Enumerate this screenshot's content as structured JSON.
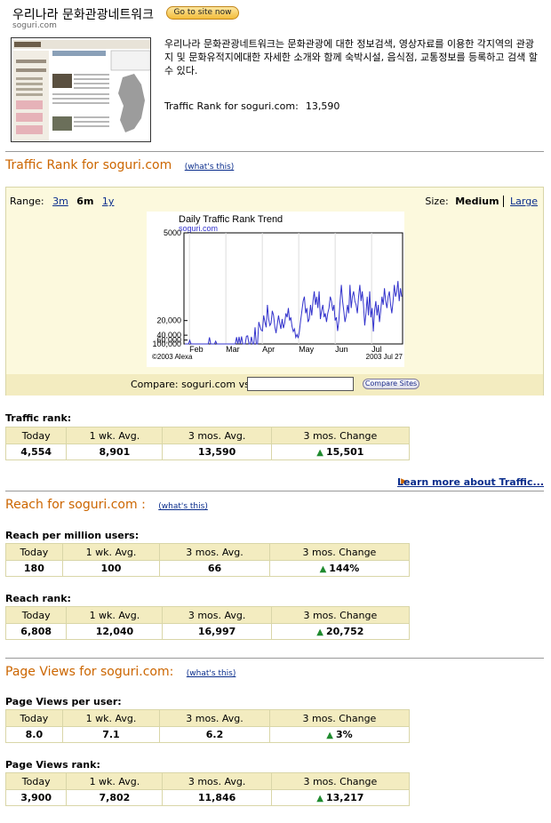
{
  "header": {
    "site_title": "우리나라 문화관광네트워크",
    "go_button": "Go to site now",
    "domain": "soguri.com",
    "description": "우리나라 문화관광네트워크는 문화관광에 대한 정보검색, 영상자료를 이용한 각지역의 관광지 및 문화유적지에대한 자세한 소개와 함께 숙박시설, 음식점, 교통정보를 등록하고 검색 할 수 있다.",
    "traffic_rank_label": "Traffic Rank for soguri.com:",
    "traffic_rank_value": "13,590"
  },
  "traffic_section": {
    "title": "Traffic Rank for soguri.com",
    "whats_this": "(what's this)",
    "range_label": "Range:",
    "range_options": [
      "3m",
      "6m",
      "1y"
    ],
    "range_selected": "6m",
    "size_label": "Size:",
    "size_selected": "Medium",
    "size_other": "Large",
    "compare_label": "Compare:  soguri.com vs.",
    "compare_input_value": "",
    "compare_button": "Compare Sites",
    "learn_more": "Learn more about Traffic..."
  },
  "chart_data": {
    "type": "line",
    "title": "Daily Traffic Rank Trend",
    "subtitle": "soguri.com",
    "footer_left": "©2003 Alexa",
    "footer_right": "2003 Jul 27",
    "y_tick_labels": [
      "5000",
      "20,000",
      "40,000",
      "60,000",
      "100,000"
    ],
    "x_tick_labels": [
      "Feb",
      "Mar",
      "Apr",
      "May",
      "Jun",
      "Jul"
    ],
    "line_color": "#3333cc",
    "ylim_rank": [
      100000,
      5000
    ],
    "y_scale": "reciprocal",
    "series": [
      {
        "values": [
          100000,
          100000,
          100000,
          100000,
          62000,
          100000,
          100000,
          100000,
          100000,
          100000,
          100000,
          100000,
          100000,
          100000,
          100000,
          100000,
          100000,
          100000,
          100000,
          100000,
          47000,
          100000,
          100000,
          100000,
          100000,
          68000,
          100000,
          100000,
          100000,
          100000,
          100000,
          100000,
          100000,
          100000,
          100000,
          100000,
          100000,
          100000,
          100000,
          100000,
          100000,
          100000,
          46000,
          100000,
          45000,
          100000,
          44000,
          100000,
          100000,
          100000,
          43000,
          42000,
          100000,
          100000,
          45000,
          100000,
          100000,
          26000,
          100000,
          100000,
          21000,
          25000,
          30000,
          31000,
          17000,
          21000,
          26000,
          13000,
          19000,
          24000,
          22000,
          15000,
          17000,
          25000,
          35000,
          23000,
          17000,
          22000,
          28000,
          19000,
          27000,
          22000,
          16000,
          18000,
          14000,
          20000,
          18000,
          25000,
          32000,
          28000,
          47000,
          38000,
          50000,
          32000,
          20000,
          15000,
          12000,
          11000,
          16000,
          14000,
          21000,
          19000,
          13000,
          17000,
          12000,
          10000,
          13000,
          11000,
          14000,
          10000,
          19000,
          15000,
          13000,
          18000,
          16000,
          21000,
          16000,
          14000,
          11000,
          12000,
          15000,
          13000,
          20000,
          18000,
          31000,
          20000,
          12000,
          9000,
          12000,
          15000,
          21000,
          17000,
          13000,
          16000,
          9000,
          14000,
          11000,
          10000,
          12000,
          13000,
          16000,
          11000,
          9000,
          12000,
          10000,
          13000,
          24000,
          16000,
          11000,
          17000,
          10000,
          18000,
          14000,
          32000,
          15000,
          12000,
          17000,
          13000,
          21000,
          15000,
          11000,
          13000,
          9500,
          12000,
          14000,
          11000,
          10000,
          13000,
          16000,
          12000,
          9000,
          11000,
          10000,
          8500,
          12000,
          9500,
          11000
        ]
      }
    ]
  },
  "traffic_rank": {
    "label": "Traffic rank:",
    "headers": [
      "Today",
      "1 wk. Avg.",
      "3 mos. Avg.",
      "3 mos. Change"
    ],
    "values": [
      "4,554",
      "8,901",
      "13,590",
      "15,501"
    ]
  },
  "reach_section": {
    "title": "Reach for soguri.com :",
    "whats_this": "(what's this)"
  },
  "reach_per_million": {
    "label": "Reach per million users:",
    "headers": [
      "Today",
      "1 wk. Avg.",
      "3 mos. Avg.",
      "3 mos. Change"
    ],
    "values": [
      "180",
      "100",
      "66",
      "144%"
    ]
  },
  "reach_rank": {
    "label": "Reach rank:",
    "headers": [
      "Today",
      "1 wk. Avg.",
      "3 mos. Avg.",
      "3 mos. Change"
    ],
    "values": [
      "6,808",
      "12,040",
      "16,997",
      "20,752"
    ]
  },
  "pageviews_section": {
    "title": "Page Views for soguri.com:",
    "whats_this": "(what's this)"
  },
  "pageviews_per_user": {
    "label": "Page Views per user:",
    "headers": [
      "Today",
      "1 wk. Avg.",
      "3 mos. Avg.",
      "3 mos. Change"
    ],
    "values": [
      "8.0",
      "7.1",
      "6.2",
      "3%"
    ]
  },
  "pageviews_rank": {
    "label": "Page Views rank:",
    "headers": [
      "Today",
      "1 wk. Avg.",
      "3 mos. Avg.",
      "3 mos. Change"
    ],
    "values": [
      "3,900",
      "7,802",
      "11,846",
      "13,217"
    ]
  },
  "icons": {
    "up_arrow": "up-arrow-icon",
    "learn_arrow": "right-triangle-icon"
  },
  "colors": {
    "section_title": "#cc6600",
    "link": "#0a2d8c",
    "table_header_bg": "#f3ecc0",
    "up_arrow": "#1f8a2e"
  }
}
